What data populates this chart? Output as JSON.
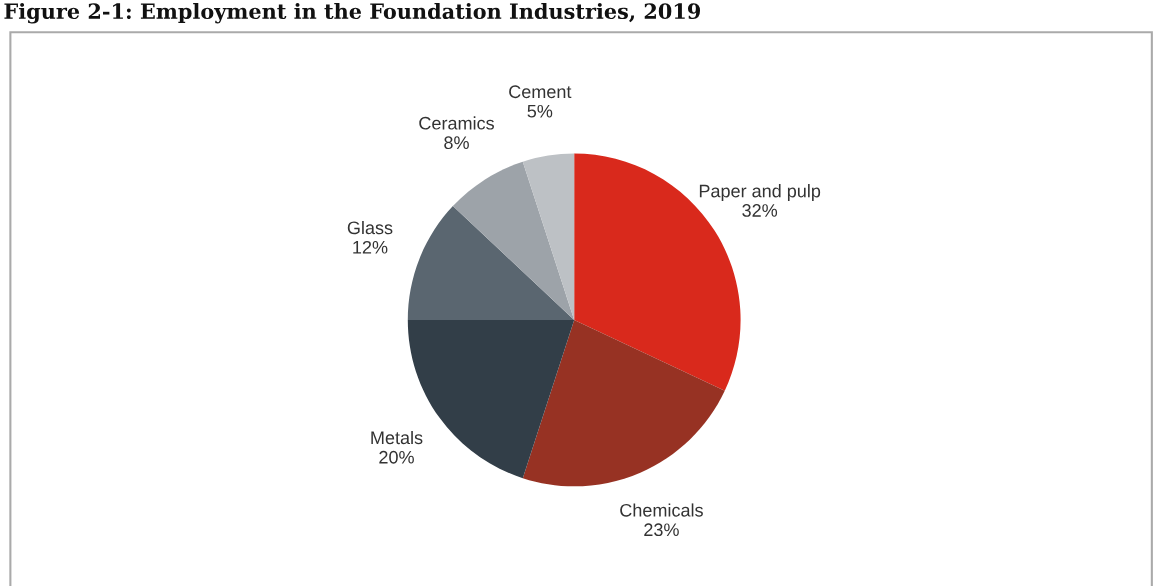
{
  "chart_data": {
    "type": "pie",
    "title": "Figure 2-1: Employment in the Foundation Industries, 2019",
    "categories": [
      "Paper and pulp",
      "Chemicals",
      "Metals",
      "Glass",
      "Ceramics",
      "Cement"
    ],
    "values": [
      32,
      23,
      20,
      12,
      8,
      5
    ],
    "value_labels": [
      "32%",
      "23%",
      "20%",
      "12%",
      "8%",
      "5%"
    ],
    "colors": [
      "#d9291c",
      "#973223",
      "#323e48",
      "#5a6670",
      "#9da3a9",
      "#bdc1c5"
    ],
    "legend": false
  }
}
